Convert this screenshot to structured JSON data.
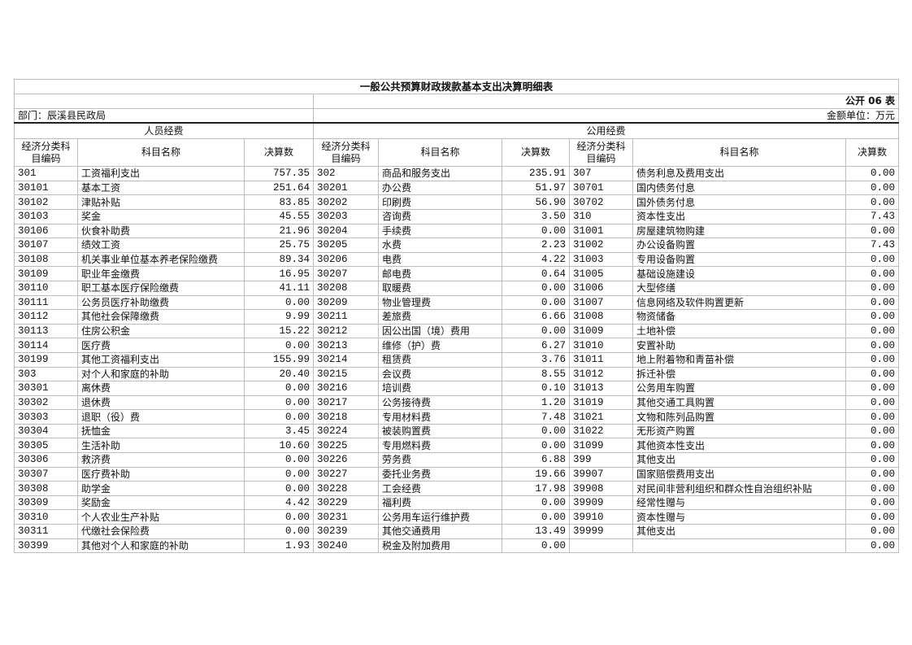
{
  "title": "一般公共预算财政拨款基本支出决算明细表",
  "table_no": "公开 06 表",
  "department": "部门：辰溪县民政局",
  "unit": "金额单位：万元",
  "groups": {
    "personnel": "人员经费",
    "public": "公用经费"
  },
  "headers": {
    "code": "经济分类科目编码",
    "name": "科目名称",
    "amount": "决算数"
  },
  "personnel_rows": [
    [
      "301",
      "工资福利支出",
      "757.35"
    ],
    [
      "30101",
      "基本工资",
      "251.64"
    ],
    [
      "30102",
      "津贴补贴",
      "83.85"
    ],
    [
      "30103",
      "奖金",
      "45.55"
    ],
    [
      "30106",
      "伙食补助费",
      "21.96"
    ],
    [
      "30107",
      "绩效工资",
      "25.75"
    ],
    [
      "30108",
      "机关事业单位基本养老保险缴费",
      "89.34"
    ],
    [
      "30109",
      "职业年金缴费",
      "16.95"
    ],
    [
      "30110",
      "职工基本医疗保险缴费",
      "41.11"
    ],
    [
      "30111",
      "公务员医疗补助缴费",
      "0.00"
    ],
    [
      "30112",
      "其他社会保障缴费",
      "9.99"
    ],
    [
      "30113",
      "住房公积金",
      "15.22"
    ],
    [
      "30114",
      "医疗费",
      "0.00"
    ],
    [
      "30199",
      "其他工资福利支出",
      "155.99"
    ],
    [
      "303",
      "对个人和家庭的补助",
      "20.40"
    ],
    [
      "30301",
      "离休费",
      "0.00"
    ],
    [
      "30302",
      "退休费",
      "0.00"
    ],
    [
      "30303",
      "退职（役）费",
      "0.00"
    ],
    [
      "30304",
      "抚恤金",
      "3.45"
    ],
    [
      "30305",
      "生活补助",
      "10.60"
    ],
    [
      "30306",
      "救济费",
      "0.00"
    ],
    [
      "30307",
      "医疗费补助",
      "0.00"
    ],
    [
      "30308",
      "助学金",
      "0.00"
    ],
    [
      "30309",
      "奖励金",
      "4.42"
    ],
    [
      "30310",
      "个人农业生产补贴",
      "0.00"
    ],
    [
      "30311",
      "代缴社会保险费",
      "0.00"
    ],
    [
      "30399",
      "其他对个人和家庭的补助",
      "1.93"
    ]
  ],
  "public_rows_a": [
    [
      "302",
      "商品和服务支出",
      "235.91"
    ],
    [
      "30201",
      "办公费",
      "51.97"
    ],
    [
      "30202",
      "印刷费",
      "56.90"
    ],
    [
      "30203",
      "咨询费",
      "3.50"
    ],
    [
      "30204",
      "手续费",
      "0.00"
    ],
    [
      "30205",
      "水费",
      "2.23"
    ],
    [
      "30206",
      "电费",
      "4.22"
    ],
    [
      "30207",
      "邮电费",
      "0.64"
    ],
    [
      "30208",
      "取暖费",
      "0.00"
    ],
    [
      "30209",
      "物业管理费",
      "0.00"
    ],
    [
      "30211",
      "差旅费",
      "6.66"
    ],
    [
      "30212",
      "因公出国（境）费用",
      "0.00"
    ],
    [
      "30213",
      "维修（护）费",
      "6.27"
    ],
    [
      "30214",
      "租赁费",
      "3.76"
    ],
    [
      "30215",
      "会议费",
      "8.55"
    ],
    [
      "30216",
      "培训费",
      "0.10"
    ],
    [
      "30217",
      "公务接待费",
      "1.20"
    ],
    [
      "30218",
      "专用材料费",
      "7.48"
    ],
    [
      "30224",
      "被装购置费",
      "0.00"
    ],
    [
      "30225",
      "专用燃料费",
      "0.00"
    ],
    [
      "30226",
      "劳务费",
      "6.88"
    ],
    [
      "30227",
      "委托业务费",
      "19.66"
    ],
    [
      "30228",
      "工会经费",
      "17.98"
    ],
    [
      "30229",
      "福利费",
      "0.00"
    ],
    [
      "30231",
      "公务用车运行维护费",
      "0.00"
    ],
    [
      "30239",
      "其他交通费用",
      "13.49"
    ],
    [
      "30240",
      "税金及附加费用",
      "0.00"
    ]
  ],
  "public_rows_b": [
    [
      "307",
      "债务利息及费用支出",
      "0.00"
    ],
    [
      "30701",
      "国内债务付息",
      "0.00"
    ],
    [
      "30702",
      "国外债务付息",
      "0.00"
    ],
    [
      "310",
      "资本性支出",
      "7.43"
    ],
    [
      "31001",
      "房屋建筑物购建",
      "0.00"
    ],
    [
      "31002",
      "办公设备购置",
      "7.43"
    ],
    [
      "31003",
      "专用设备购置",
      "0.00"
    ],
    [
      "31005",
      "基础设施建设",
      "0.00"
    ],
    [
      "31006",
      "大型修缮",
      "0.00"
    ],
    [
      "31007",
      "信息网络及软件购置更新",
      "0.00"
    ],
    [
      "31008",
      "物资储备",
      "0.00"
    ],
    [
      "31009",
      "土地补偿",
      "0.00"
    ],
    [
      "31010",
      "安置补助",
      "0.00"
    ],
    [
      "31011",
      "地上附着物和青苗补偿",
      "0.00"
    ],
    [
      "31012",
      "拆迁补偿",
      "0.00"
    ],
    [
      "31013",
      "公务用车购置",
      "0.00"
    ],
    [
      "31019",
      "其他交通工具购置",
      "0.00"
    ],
    [
      "31021",
      "文物和陈列品购置",
      "0.00"
    ],
    [
      "31022",
      "无形资产购置",
      "0.00"
    ],
    [
      "31099",
      "其他资本性支出",
      "0.00"
    ],
    [
      "399",
      "其他支出",
      "0.00"
    ],
    [
      "39907",
      "国家赔偿费用支出",
      "0.00"
    ],
    [
      "39908",
      "对民间非营利组织和群众性自治组织补贴",
      "0.00"
    ],
    [
      "39909",
      "经常性赠与",
      "0.00"
    ],
    [
      "39910",
      "资本性赠与",
      "0.00"
    ],
    [
      "39999",
      "其他支出",
      "0.00"
    ],
    [
      "",
      "",
      "0.00"
    ]
  ]
}
